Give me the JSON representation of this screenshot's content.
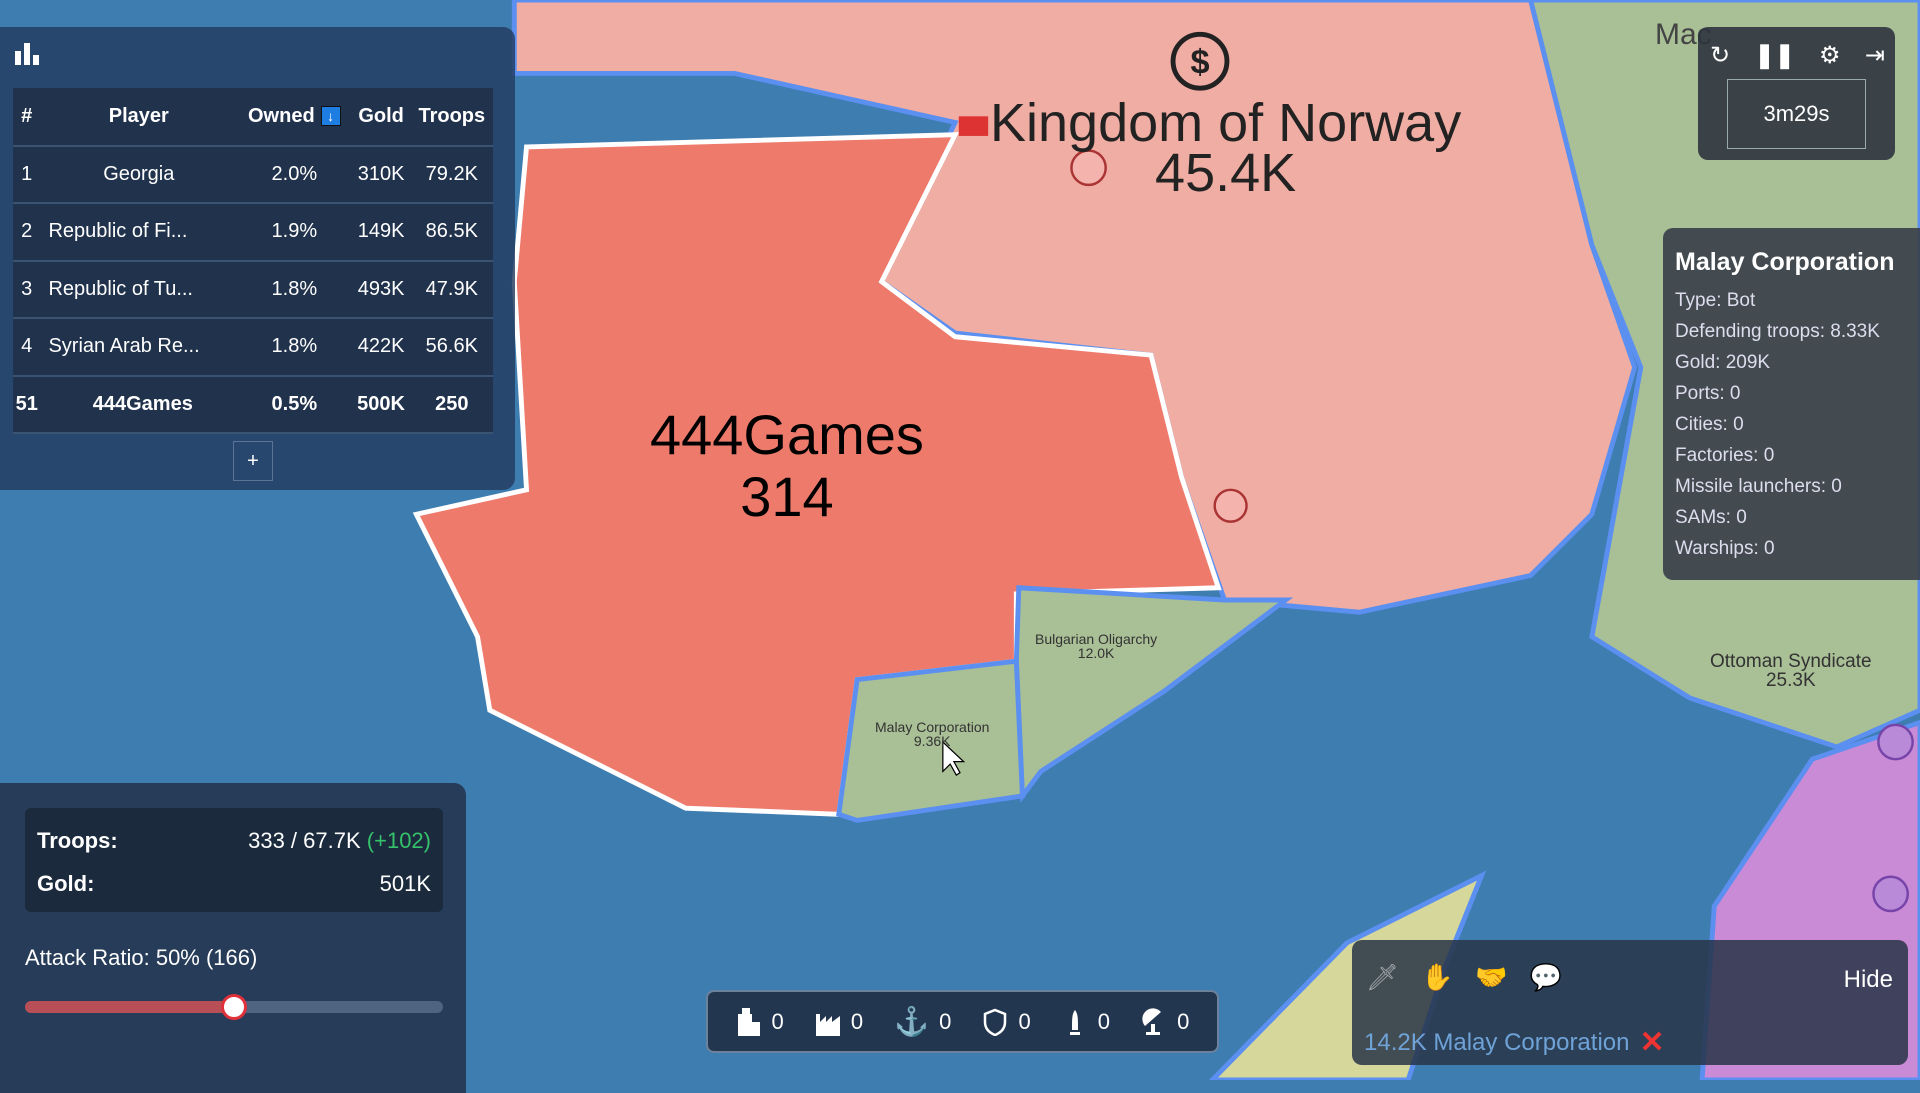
{
  "map": {
    "labels": [
      {
        "name": "Kingdom of Norway",
        "value": "45.4K"
      },
      {
        "name": "444Games",
        "value": "314"
      },
      {
        "name": "Bulgarian Oligarchy",
        "value": "12.0K"
      },
      {
        "name": "Malay Corporation",
        "value": "9.36K"
      },
      {
        "name": "Ottoman Syndicate",
        "value": "25.3K"
      },
      {
        "name": "Mac",
        "value": ""
      }
    ],
    "colors": {
      "ocean": "#3e7db0",
      "player": "#ee7a6c",
      "norway": "#f0ada3",
      "green": "#a9bf96",
      "yellow": "#d6d79a",
      "purple": "#c98ad6",
      "coast": "#5b8ff0"
    }
  },
  "leaderboard": {
    "icon": "bar-chart-icon",
    "headers": [
      "#",
      "Player",
      "Owned",
      "Gold",
      "Troops"
    ],
    "sort_icon": "↓",
    "rows": [
      {
        "rank": "1",
        "player": "Georgia",
        "owned": "2.0%",
        "gold": "310K",
        "troops": "79.2K"
      },
      {
        "rank": "2",
        "player": "Republic of Fi...",
        "owned": "1.9%",
        "gold": "149K",
        "troops": "86.5K"
      },
      {
        "rank": "3",
        "player": "Republic of Tu...",
        "owned": "1.8%",
        "gold": "493K",
        "troops": "47.9K"
      },
      {
        "rank": "4",
        "player": "Syrian Arab Re...",
        "owned": "1.8%",
        "gold": "422K",
        "troops": "56.6K"
      }
    ],
    "self": {
      "rank": "51",
      "player": "444Games",
      "owned": "0.5%",
      "gold": "500K",
      "troops": "250"
    },
    "expand_label": "+"
  },
  "stats": {
    "troops_label": "Troops:",
    "troops_value": "333 / 67.7K",
    "troops_delta": "(+102)",
    "gold_label": "Gold:",
    "gold_value": "501K",
    "attack_ratio_label": "Attack Ratio: 50% (166)",
    "attack_ratio_percent": 50,
    "accent": "#b84e56"
  },
  "controls": {
    "timer": "3m29s",
    "icons": [
      "restart-icon",
      "pause-icon",
      "settings-icon",
      "exit-icon"
    ]
  },
  "info": {
    "title": "Malay Corporation",
    "lines": [
      "Type: Bot",
      "Defending troops: 8.33K",
      "Gold: 209K",
      "Ports: 0",
      "Cities: 0",
      "Factories: 0",
      "Missile launchers: 0",
      "SAMs: 0",
      "Warships: 0"
    ]
  },
  "build_bar": [
    {
      "icon": "city-icon",
      "count": "0"
    },
    {
      "icon": "factory-icon",
      "count": "0"
    },
    {
      "icon": "port-anchor-icon",
      "count": "0"
    },
    {
      "icon": "defense-shield-icon",
      "count": "0"
    },
    {
      "icon": "missile-silo-icon",
      "count": "0"
    },
    {
      "icon": "sam-radar-icon",
      "count": "0"
    }
  ],
  "actions": {
    "icons": [
      "attack-sword-icon",
      "donate-icon",
      "alliance-handshake-icon",
      "chat-icon"
    ],
    "hide_label": "Hide",
    "target": "14.2K Malay Corporation",
    "cancel_icon": "✕"
  }
}
